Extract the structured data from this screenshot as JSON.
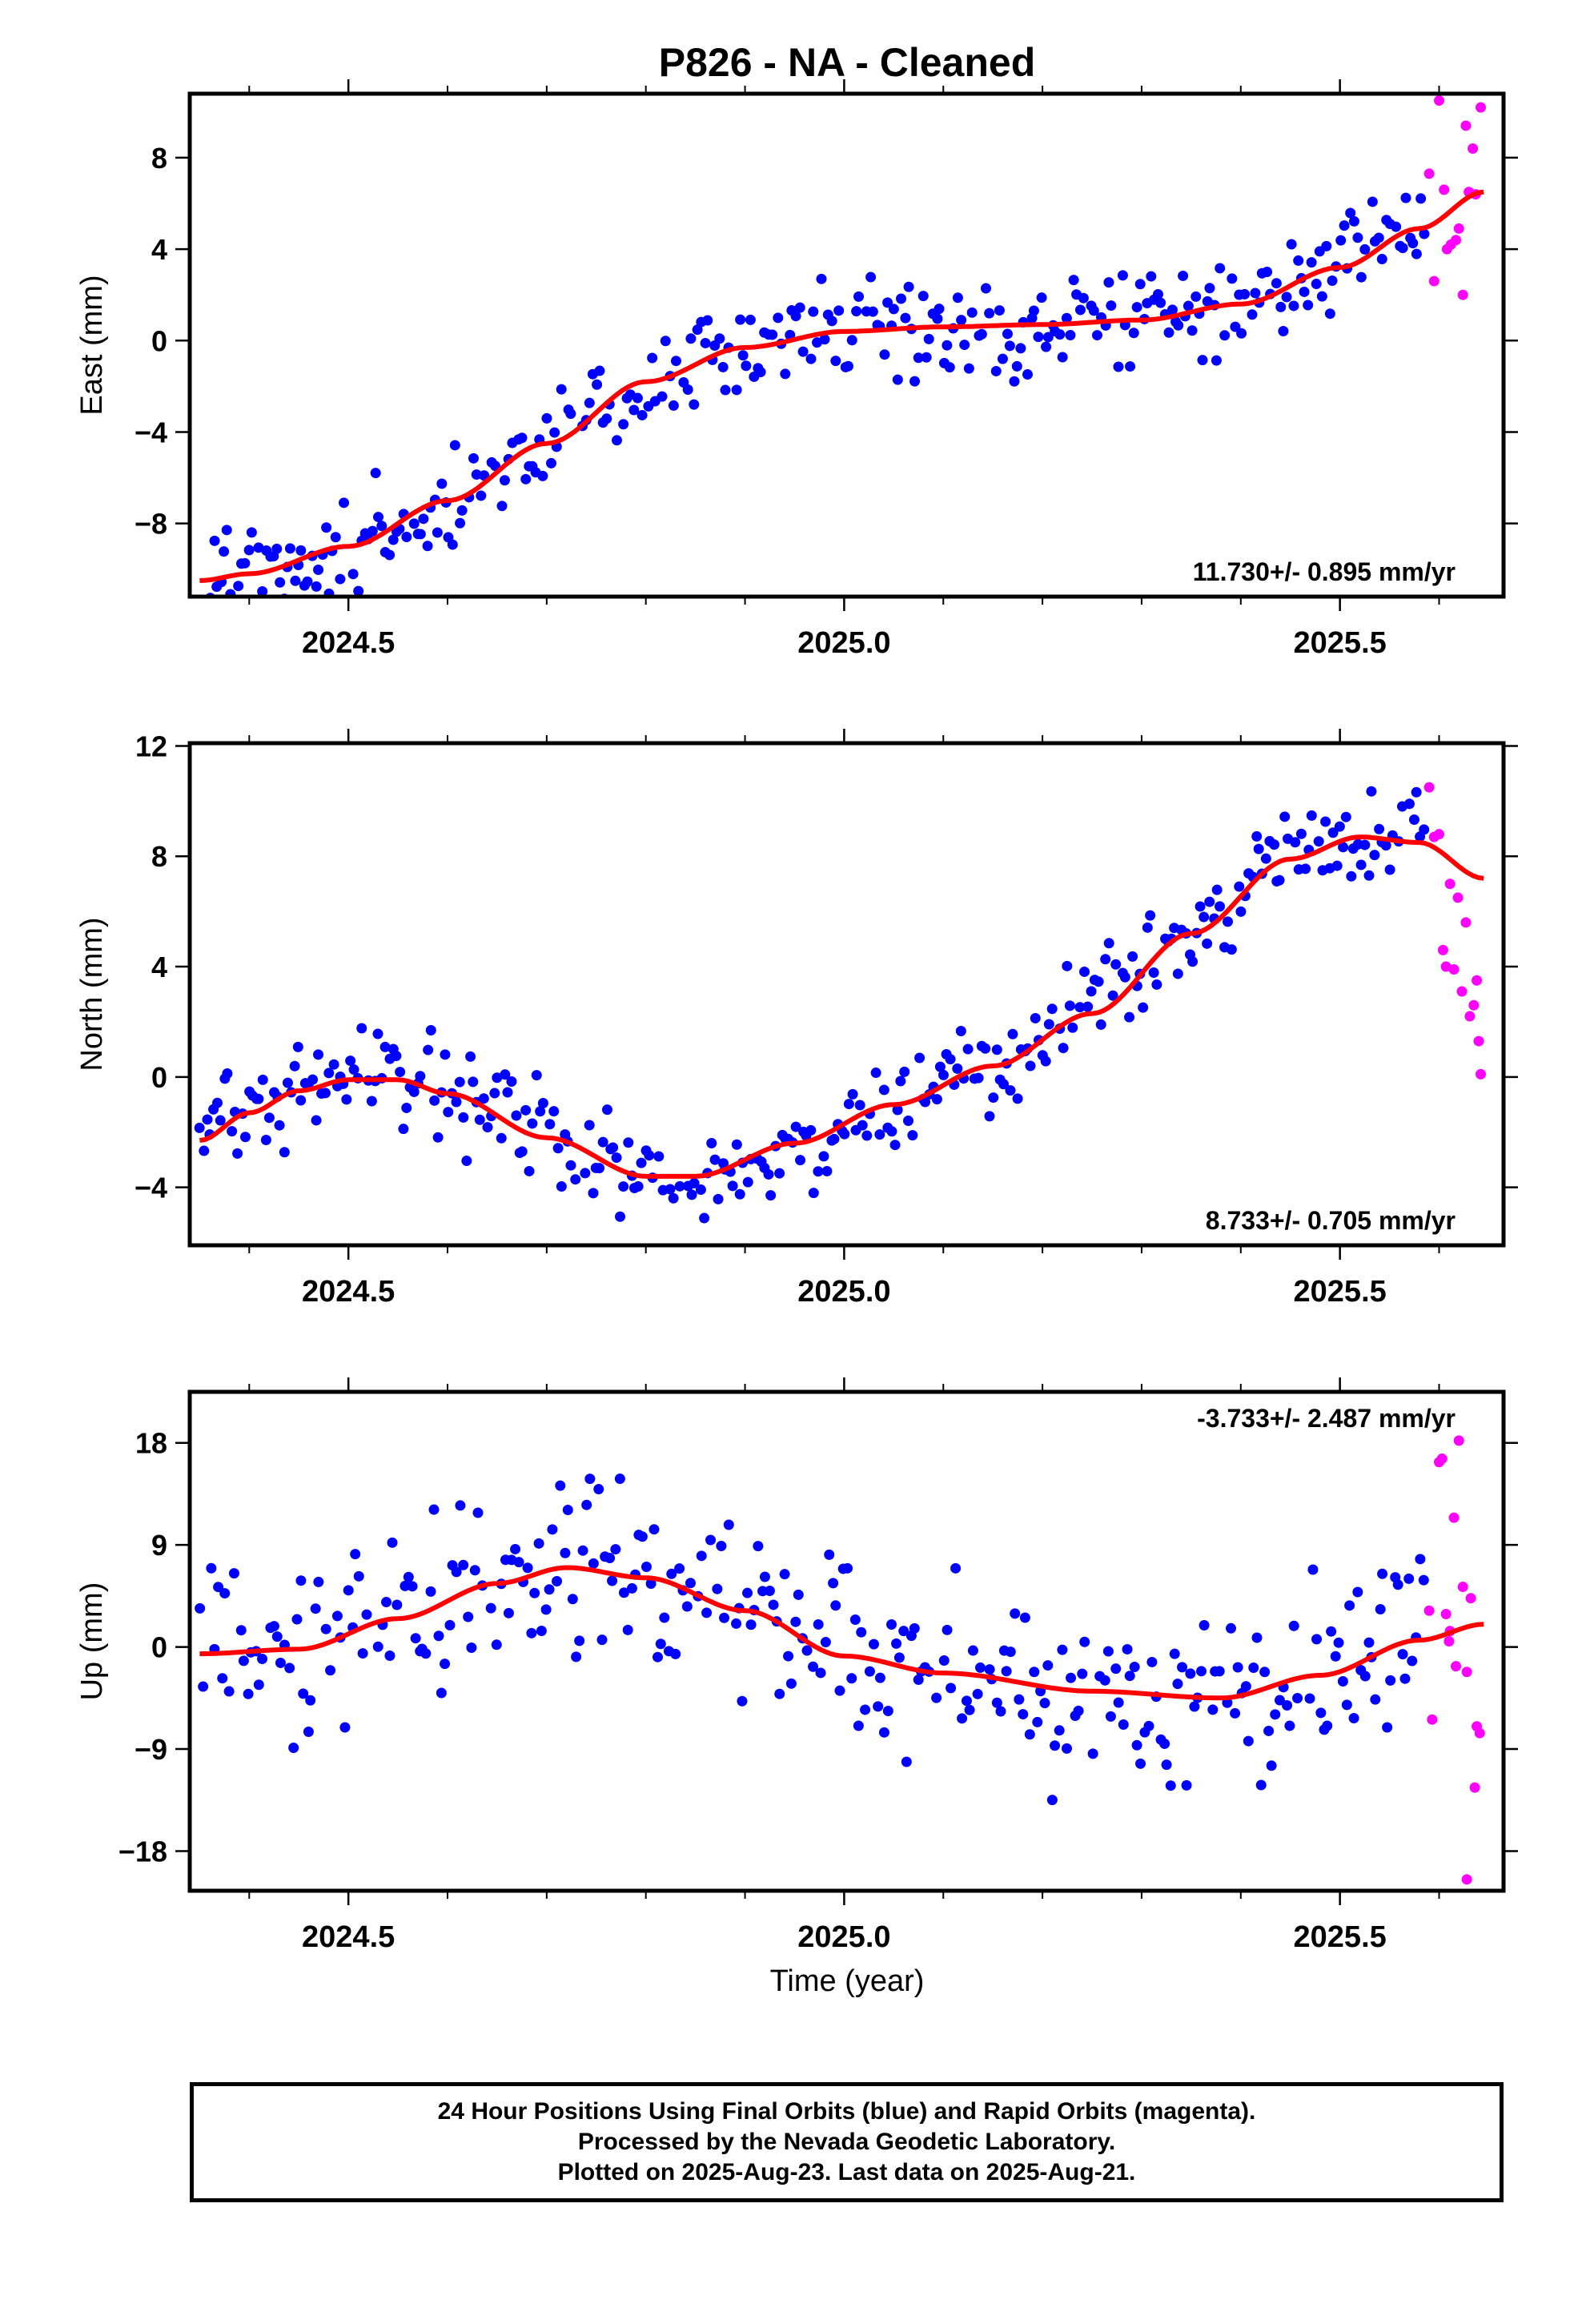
{
  "figure": {
    "title": "P826  - NA - Cleaned",
    "xlabel": "Time (year)",
    "footer": [
      "24 Hour Positions Using Final Orbits (blue) and Rapid Orbits (magenta).",
      "Processed by the Nevada Geodetic Laboratory.",
      "Plotted on 2025-Aug-23. Last data on 2025-Aug-21."
    ]
  },
  "colors": {
    "final": "#0000ff",
    "rapid": "#ff00ff",
    "fit": "#ff0000",
    "frame": "#000000"
  },
  "chart_data": [
    {
      "type": "scatter",
      "ylabel": "East (mm)",
      "xlim": [
        2024.34,
        2025.665
      ],
      "ylim": [
        -11.2,
        10.8
      ],
      "xticks": [
        2024.5,
        2025.0,
        2025.5
      ],
      "xtick_labels": [
        "2024.5",
        "2025.0",
        "2025.5"
      ],
      "yticks": [
        -8,
        -4,
        0,
        4,
        8
      ],
      "ytick_labels": [
        "−8",
        "−4",
        "0",
        "4",
        "8"
      ],
      "rate_label": "11.730+/- 0.895 mm/yr",
      "rate_position": "bottom-right",
      "series": [
        {
          "kind": "final",
          "trend": [
            [
              2024.35,
              -10.6
            ],
            [
              2024.45,
              -9.9
            ],
            [
              2024.55,
              -8.3
            ],
            [
              2024.65,
              -5.8
            ],
            [
              2024.75,
              -2.9
            ],
            [
              2024.85,
              -0.6
            ],
            [
              2024.95,
              0.2
            ],
            [
              2025.05,
              0.5
            ],
            [
              2025.2,
              0.6
            ],
            [
              2025.35,
              1.1
            ],
            [
              2025.45,
              2.5
            ],
            [
              2025.585,
              5.0
            ]
          ],
          "noise": 1.05,
          "count": 350
        },
        {
          "kind": "rapid",
          "points": [
            [
              2025.59,
              7.3
            ],
            [
              2025.595,
              2.6
            ],
            [
              2025.6,
              10.5
            ],
            [
              2025.605,
              6.6
            ],
            [
              2025.608,
              4.0
            ],
            [
              2025.612,
              4.2
            ],
            [
              2025.617,
              4.4
            ],
            [
              2025.62,
              4.9
            ],
            [
              2025.624,
              2.0
            ],
            [
              2025.627,
              9.4
            ],
            [
              2025.63,
              6.5
            ],
            [
              2025.634,
              8.4
            ],
            [
              2025.637,
              6.4
            ],
            [
              2025.642,
              10.2
            ]
          ]
        }
      ],
      "fit": [
        [
          2024.35,
          -10.5
        ],
        [
          2024.4,
          -10.2
        ],
        [
          2024.5,
          -9.0
        ],
        [
          2024.6,
          -7.0
        ],
        [
          2024.7,
          -4.5
        ],
        [
          2024.8,
          -1.8
        ],
        [
          2024.9,
          -0.3
        ],
        [
          2025.0,
          0.4
        ],
        [
          2025.1,
          0.6
        ],
        [
          2025.2,
          0.7
        ],
        [
          2025.3,
          0.9
        ],
        [
          2025.4,
          1.6
        ],
        [
          2025.5,
          3.2
        ],
        [
          2025.58,
          4.9
        ],
        [
          2025.645,
          6.5
        ]
      ]
    },
    {
      "type": "scatter",
      "ylabel": "North (mm)",
      "xlim": [
        2024.34,
        2025.665
      ],
      "ylim": [
        -6.1,
        12.1
      ],
      "xticks": [
        2024.5,
        2025.0,
        2025.5
      ],
      "xtick_labels": [
        "2024.5",
        "2025.0",
        "2025.5"
      ],
      "yticks": [
        -4,
        0,
        4,
        8,
        12
      ],
      "ytick_labels": [
        "−4",
        "0",
        "4",
        "8",
        "12"
      ],
      "rate_label": "8.733+/- 0.705 mm/yr",
      "rate_position": "bottom-right",
      "series": [
        {
          "kind": "final",
          "trend": [
            [
              2024.35,
              -2.2
            ],
            [
              2024.42,
              -1.2
            ],
            [
              2024.5,
              0.5
            ],
            [
              2024.55,
              0.4
            ],
            [
              2024.65,
              -1.2
            ],
            [
              2024.75,
              -3.2
            ],
            [
              2024.85,
              -3.9
            ],
            [
              2024.95,
              -2.5
            ],
            [
              2025.05,
              -1.0
            ],
            [
              2025.15,
              0.5
            ],
            [
              2025.25,
              2.8
            ],
            [
              2025.35,
              5.5
            ],
            [
              2025.45,
              8.0
            ],
            [
              2025.585,
              9.3
            ]
          ],
          "noise": 0.85,
          "count": 350
        },
        {
          "kind": "rapid",
          "points": [
            [
              2025.59,
              10.5
            ],
            [
              2025.595,
              8.7
            ],
            [
              2025.6,
              8.8
            ],
            [
              2025.604,
              4.6
            ],
            [
              2025.607,
              4.0
            ],
            [
              2025.611,
              7.0
            ],
            [
              2025.615,
              3.9
            ],
            [
              2025.619,
              6.5
            ],
            [
              2025.623,
              3.1
            ],
            [
              2025.627,
              5.6
            ],
            [
              2025.631,
              2.2
            ],
            [
              2025.635,
              2.6
            ],
            [
              2025.638,
              3.5
            ],
            [
              2025.642,
              0.1
            ],
            [
              2025.64,
              1.3
            ]
          ]
        }
      ],
      "fit": [
        [
          2024.35,
          -2.3
        ],
        [
          2024.4,
          -1.3
        ],
        [
          2024.45,
          -0.5
        ],
        [
          2024.5,
          -0.1
        ],
        [
          2024.55,
          -0.1
        ],
        [
          2024.6,
          -0.6
        ],
        [
          2024.7,
          -2.2
        ],
        [
          2024.8,
          -3.6
        ],
        [
          2024.85,
          -3.6
        ],
        [
          2024.95,
          -2.4
        ],
        [
          2025.05,
          -1.0
        ],
        [
          2025.15,
          0.4
        ],
        [
          2025.25,
          2.3
        ],
        [
          2025.35,
          5.2
        ],
        [
          2025.45,
          7.9
        ],
        [
          2025.52,
          8.7
        ],
        [
          2025.58,
          8.5
        ],
        [
          2025.645,
          7.2
        ]
      ]
    },
    {
      "type": "scatter",
      "ylabel": "Up (mm)",
      "xlim": [
        2024.34,
        2025.665
      ],
      "ylim": [
        -21.5,
        22.5
      ],
      "xticks": [
        2024.5,
        2025.0,
        2025.5
      ],
      "xtick_labels": [
        "2024.5",
        "2025.0",
        "2025.5"
      ],
      "yticks": [
        -18,
        -9,
        0,
        9,
        18
      ],
      "ytick_labels": [
        "−18",
        "−9",
        "0",
        "9",
        "18"
      ],
      "rate_label": "-3.733+/- 2.487 mm/yr",
      "rate_position": "top-right",
      "series": [
        {
          "kind": "final",
          "trend": [
            [
              2024.35,
              -1.0
            ],
            [
              2024.45,
              -0.2
            ],
            [
              2024.55,
              2.5
            ],
            [
              2024.65,
              5.5
            ],
            [
              2024.72,
              7.2
            ],
            [
              2024.8,
              6.0
            ],
            [
              2024.9,
              3.0
            ],
            [
              2025.0,
              -0.8
            ],
            [
              2025.1,
              -2.2
            ],
            [
              2025.25,
              -4.0
            ],
            [
              2025.38,
              -4.7
            ],
            [
              2025.48,
              -2.5
            ],
            [
              2025.585,
              0.0
            ]
          ],
          "noise": 3.8,
          "count": 330
        },
        {
          "kind": "rapid",
          "points": [
            [
              2025.59,
              3.2
            ],
            [
              2025.593,
              -6.4
            ],
            [
              2025.6,
              16.3
            ],
            [
              2025.603,
              16.6
            ],
            [
              2025.607,
              2.9
            ],
            [
              2025.61,
              0.5
            ],
            [
              2025.615,
              11.4
            ],
            [
              2025.617,
              -1.7
            ],
            [
              2025.62,
              18.2
            ],
            [
              2025.624,
              5.3
            ],
            [
              2025.628,
              -2.2
            ],
            [
              2025.632,
              4.3
            ],
            [
              2025.636,
              -12.4
            ],
            [
              2025.638,
              -7.0
            ],
            [
              2025.641,
              -7.6
            ],
            [
              2025.628,
              -20.5
            ],
            [
              2025.611,
              1.4
            ]
          ]
        }
      ],
      "fit": [
        [
          2024.35,
          -0.6
        ],
        [
          2024.45,
          -0.2
        ],
        [
          2024.55,
          2.5
        ],
        [
          2024.65,
          5.6
        ],
        [
          2024.72,
          7.0
        ],
        [
          2024.8,
          6.1
        ],
        [
          2024.9,
          3.2
        ],
        [
          2025.0,
          -0.8
        ],
        [
          2025.1,
          -2.3
        ],
        [
          2025.25,
          -3.9
        ],
        [
          2025.38,
          -4.5
        ],
        [
          2025.48,
          -2.5
        ],
        [
          2025.58,
          0.6
        ],
        [
          2025.645,
          2.0
        ]
      ]
    }
  ]
}
